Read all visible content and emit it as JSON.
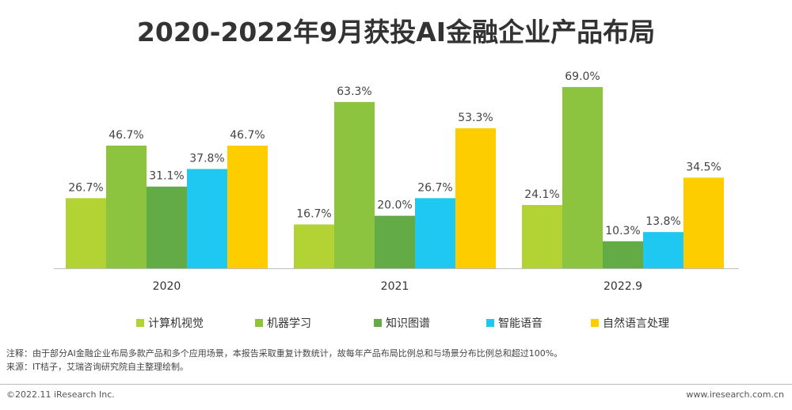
{
  "title": "2020-2022年9月获投AI金融企业产品布局",
  "chart_data": {
    "type": "bar",
    "categories": [
      "2020",
      "2021",
      "2022.9"
    ],
    "series": [
      {
        "name": "计算机视觉",
        "color": "#b3d334",
        "values": [
          26.7,
          16.7,
          24.1
        ],
        "labels": [
          "26.7%",
          "16.7%",
          "24.1%"
        ]
      },
      {
        "name": "机器学习",
        "color": "#8dc43f",
        "values": [
          46.7,
          63.3,
          69.0
        ],
        "labels": [
          "46.7%",
          "63.3%",
          "69.0%"
        ]
      },
      {
        "name": "知识图谱",
        "color": "#62ab46",
        "values": [
          31.1,
          20.0,
          10.3
        ],
        "labels": [
          "31.1%",
          "20.0%",
          "10.3%"
        ]
      },
      {
        "name": "智能语音",
        "color": "#1fc8f0",
        "values": [
          37.8,
          26.7,
          13.8
        ],
        "labels": [
          "37.8%",
          "26.7%",
          "13.8%"
        ]
      },
      {
        "name": "自然语言处理",
        "color": "#fecd00",
        "values": [
          46.7,
          53.3,
          34.5
        ],
        "labels": [
          "46.7%",
          "53.3%",
          "34.5%"
        ]
      }
    ],
    "ylim": [
      0,
      75
    ],
    "legend_position": "bottom"
  },
  "notes": {
    "note": "注释：由于部分AI金融企业布局多款产品和多个应用场景，本报告采取重复计数统计，故每年产品布局比例总和与场景分布比例总和超过100%。",
    "source": "来源：IT桔子，艾瑞咨询研究院自主整理绘制。"
  },
  "footer": {
    "copyright": "©2022.11 iResearch Inc.",
    "website": "www.iresearch.com.cn"
  }
}
